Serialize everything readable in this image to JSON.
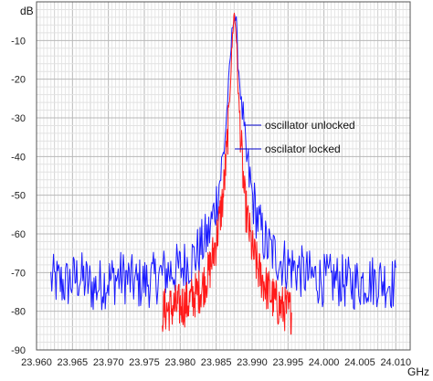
{
  "chart_data": {
    "type": "line",
    "y_unit": "dB",
    "x_unit": "GHz",
    "xlim": [
      23.96,
      24.012
    ],
    "ylim": [
      -90,
      0
    ],
    "grid": true,
    "x_ticks": [
      23.96,
      23.965,
      23.97,
      23.975,
      23.98,
      23.985,
      23.99,
      23.995,
      24.0,
      24.005,
      24.01
    ],
    "x_tick_labels": [
      "23.960",
      "23.965",
      "23.970",
      "23.975",
      "23.980",
      "23.985",
      "23.990",
      "23.995",
      "24.000",
      "24.005",
      "24.010"
    ],
    "y_ticks": [
      -10,
      -20,
      -30,
      -40,
      -50,
      -60,
      -70,
      -80,
      -90
    ],
    "y_tick_labels": [
      "-10",
      "-20",
      "-30",
      "-40",
      "-50",
      "-60",
      "-70",
      "-80",
      "-90"
    ],
    "annotations": [
      "oscillator unlocked",
      "oscilator locked"
    ],
    "series": [
      {
        "color": "#1a1aff",
        "x": [
          23.962,
          23.964,
          23.966,
          23.968,
          23.97,
          23.972,
          23.974,
          23.976,
          23.978,
          23.98,
          23.982,
          23.984,
          23.985,
          23.986,
          23.9865,
          23.987,
          23.9873,
          23.9875,
          23.9878,
          23.988,
          23.9885,
          23.989,
          23.99,
          23.991,
          23.992,
          23.994,
          23.996,
          23.998,
          24.0,
          24.002,
          24.004,
          24.006,
          24.008,
          24.01
        ],
        "y": [
          -72,
          -73,
          -71,
          -74,
          -72,
          -71,
          -73,
          -72,
          -70,
          -69,
          -66,
          -60,
          -52,
          -40,
          -28,
          -14,
          -6,
          -2,
          -6,
          -14,
          -26,
          -38,
          -50,
          -58,
          -63,
          -67,
          -69,
          -71,
          -72,
          -72,
          -73,
          -72,
          -72,
          -73
        ]
      },
      {
        "color": "#ff1a1a",
        "x": [
          23.9775,
          23.979,
          23.981,
          23.983,
          23.984,
          23.985,
          23.986,
          23.9865,
          23.987,
          23.9873,
          23.9875,
          23.9878,
          23.988,
          23.9885,
          23.989,
          23.99,
          23.991,
          23.992,
          23.993,
          23.994,
          23.9955
        ],
        "y": [
          -80,
          -79,
          -78,
          -74,
          -70,
          -62,
          -50,
          -38,
          -20,
          -8,
          -3,
          -8,
          -20,
          -38,
          -52,
          -64,
          -70,
          -74,
          -77,
          -79,
          -80
        ]
      }
    ]
  }
}
